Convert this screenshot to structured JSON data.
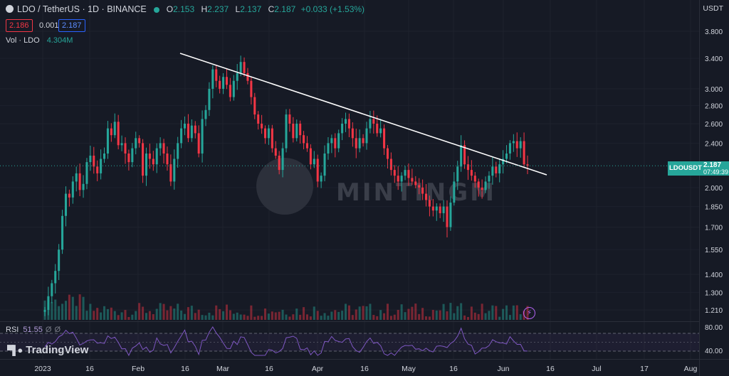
{
  "header": {
    "symbol": "LDO / TetherUS · 1D · BINANCE",
    "ohlc": [
      {
        "label": "O",
        "value": "2.153"
      },
      {
        "label": "H",
        "value": "2.237"
      },
      {
        "label": "L",
        "value": "2.137"
      },
      {
        "label": "C",
        "value": "2.187"
      }
    ],
    "change": "+0.033 (+1.53%)",
    "sell": "2.186",
    "spread": "0.001",
    "buy": "2.187",
    "volume_label": "Vol · LDO",
    "volume_value": "4.304M",
    "currency": "USDT"
  },
  "price_tag": {
    "symbol": "LDOUSDT",
    "price": "2.187",
    "countdown": "07:49:39"
  },
  "rsi": {
    "label": "RSI",
    "value": "51.55",
    "extra1": "Ø",
    "extra2": "Ø",
    "levels": [
      "80.00",
      "40.00"
    ]
  },
  "brand": "TradingView",
  "watermark": "MINTINGM",
  "colors": {
    "up": "#26a69a",
    "down": "#f23645",
    "rsi": "#7e57c2",
    "background": "#161a25"
  },
  "chart_data": {
    "type": "candlestick",
    "title": "LDO / TetherUS · 1D · BINANCE",
    "y_scale": "log",
    "y_ticks": [
      "3.800",
      "3.400",
      "3.000",
      "2.800",
      "2.600",
      "2.400",
      "2.000",
      "1.850",
      "1.700",
      "1.550",
      "1.400",
      "1.300",
      "1.210"
    ],
    "x_ticks": [
      "2023",
      "16",
      "Feb",
      "16",
      "Mar",
      "16",
      "Apr",
      "16",
      "May",
      "16",
      "Jun",
      "16",
      "Jul",
      "17",
      "Aug"
    ],
    "closes": [
      1.21,
      1.28,
      1.35,
      1.42,
      1.55,
      1.78,
      1.95,
      1.92,
      2.05,
      2.12,
      1.98,
      2.03,
      2.22,
      2.28,
      2.18,
      2.12,
      2.25,
      2.3,
      2.55,
      2.48,
      2.62,
      2.38,
      2.4,
      2.3,
      2.22,
      2.35,
      2.45,
      2.4,
      2.1,
      2.3,
      2.25,
      2.2,
      2.35,
      2.4,
      2.3,
      2.2,
      2.05,
      2.25,
      2.4,
      2.55,
      2.6,
      2.45,
      2.58,
      2.5,
      2.3,
      2.65,
      2.75,
      3.0,
      3.25,
      3.1,
      3.0,
      3.15,
      3.05,
      2.9,
      3.1,
      3.2,
      3.35,
      3.2,
      3.1,
      2.9,
      2.7,
      2.6,
      2.55,
      2.45,
      2.55,
      2.35,
      2.28,
      2.15,
      2.35,
      2.7,
      2.6,
      2.45,
      2.6,
      2.48,
      2.4,
      2.35,
      2.2,
      2.25,
      2.05,
      2.1,
      2.3,
      2.4,
      2.45,
      2.35,
      2.5,
      2.6,
      2.65,
      2.55,
      2.45,
      2.35,
      2.45,
      2.4,
      2.55,
      2.65,
      2.6,
      2.5,
      2.55,
      2.35,
      2.25,
      2.15,
      2.1,
      2.05,
      2.1,
      2.15,
      2.08,
      2.05,
      2.02,
      2.0,
      1.95,
      1.9,
      1.85,
      1.82,
      1.85,
      1.8,
      1.85,
      1.7,
      1.88,
      2.05,
      2.18,
      2.38,
      2.2,
      2.15,
      2.1,
      2.05,
      2.0,
      1.98,
      2.05,
      2.1,
      2.18,
      2.12,
      2.2,
      2.25,
      2.3,
      2.4,
      2.42,
      2.35,
      2.42,
      2.2,
      2.187
    ],
    "volume_labels": "",
    "rsi_levels": [
      80,
      40
    ]
  }
}
